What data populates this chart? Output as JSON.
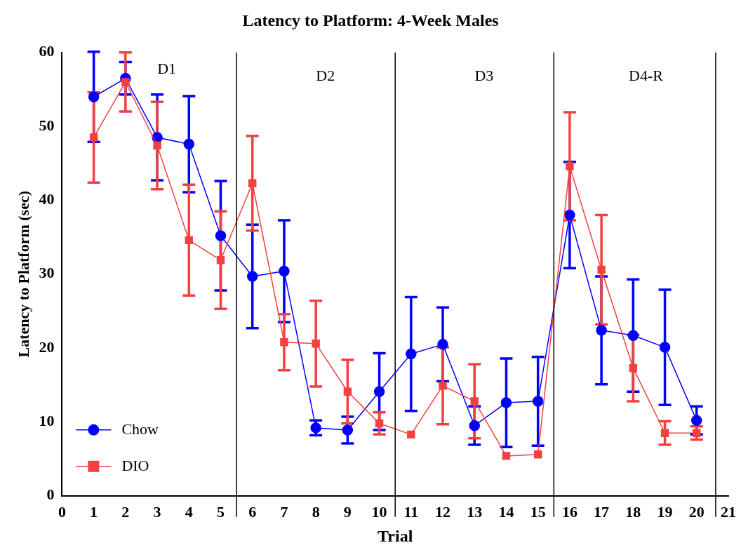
{
  "chart_data": {
    "type": "line",
    "title": "Latency to Platform: 4-Week Males",
    "xlabel": "Trial",
    "ylabel": "Latency to Platform (sec)",
    "x": [
      1,
      2,
      3,
      4,
      5,
      6,
      7,
      8,
      9,
      10,
      11,
      12,
      13,
      14,
      15,
      16,
      17,
      18,
      19,
      20
    ],
    "xlim": [
      0,
      21
    ],
    "xticks": [
      0,
      1,
      2,
      3,
      4,
      5,
      6,
      7,
      8,
      9,
      10,
      11,
      12,
      13,
      14,
      15,
      16,
      17,
      18,
      19,
      20,
      21
    ],
    "ylim": [
      0,
      60
    ],
    "yticks": [
      0,
      10,
      20,
      30,
      40,
      50,
      60
    ],
    "grid": false,
    "legend": "bottom left",
    "series": [
      {
        "name": "Chow",
        "color": "#0000ff",
        "marker": "circle",
        "values": [
          54,
          56.5,
          48.5,
          47.6,
          35.2,
          29.7,
          30.4,
          9.2,
          8.9,
          14.1,
          19.2,
          20.5,
          9.5,
          12.6,
          12.8,
          38,
          22.4,
          21.7,
          20.1,
          10.2
        ],
        "errors": [
          6.1,
          2.2,
          5.8,
          6.5,
          7.4,
          7,
          6.9,
          1,
          1.8,
          5.2,
          7.7,
          5,
          2.6,
          6,
          6,
          7.2,
          7.3,
          7.6,
          7.8,
          1.9
        ]
      },
      {
        "name": "DIO",
        "color": "#f44040",
        "marker": "square",
        "values": [
          48.5,
          56,
          47.4,
          34.6,
          31.9,
          42.3,
          20.8,
          20.6,
          14.1,
          9.8,
          8.3,
          14.9,
          12.8,
          5.4,
          5.6,
          44.6,
          30.6,
          17.3,
          8.5,
          8.5
        ],
        "errors": [
          6.1,
          4,
          5.9,
          7.5,
          6.6,
          6.4,
          3.8,
          5.8,
          4.3,
          1.5,
          null,
          5.2,
          5,
          null,
          null,
          7.3,
          7.4,
          4.5,
          1.6,
          0.9
        ]
      }
    ],
    "ref_lines": [
      {
        "axis": "x",
        "value": 5.5,
        "color": "#000000"
      },
      {
        "axis": "x",
        "value": 10.5,
        "color": "#000000"
      },
      {
        "axis": "x",
        "value": 15.5,
        "color": "#000000"
      },
      {
        "axis": "x",
        "value": 20.6,
        "color": "#000000"
      }
    ],
    "annotations": [
      "D1",
      "D2",
      "D3",
      "D4-R"
    ]
  }
}
